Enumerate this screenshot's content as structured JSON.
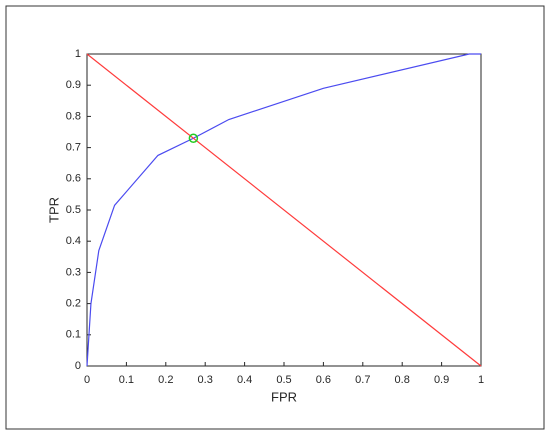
{
  "chart_data": {
    "type": "line",
    "xlabel": "FPR",
    "ylabel": "TPR",
    "xlim": [
      0,
      1
    ],
    "ylim": [
      0,
      1
    ],
    "xticks": [
      0,
      0.1,
      0.2,
      0.3,
      0.4,
      0.5,
      0.6,
      0.7,
      0.8,
      0.9,
      1
    ],
    "yticks": [
      0,
      0.1,
      0.2,
      0.3,
      0.4,
      0.5,
      0.6,
      0.7,
      0.8,
      0.9,
      1
    ],
    "grid": false,
    "series": [
      {
        "color": "#4b4bf0",
        "style": "line",
        "x": [
          0,
          0.005,
          0.01,
          0.03,
          0.07,
          0.18,
          0.27,
          0.36,
          0.6,
          0.97,
          1
        ],
        "values": [
          0,
          0.1,
          0.2,
          0.37,
          0.515,
          0.675,
          0.73,
          0.79,
          0.89,
          1,
          1
        ]
      },
      {
        "color": "#ff3b3b",
        "style": "line",
        "x": [
          0,
          1
        ],
        "values": [
          1,
          0
        ]
      },
      {
        "color": "#22cc22",
        "style": "marker",
        "x": [
          0.27
        ],
        "values": [
          0.73
        ]
      }
    ]
  }
}
